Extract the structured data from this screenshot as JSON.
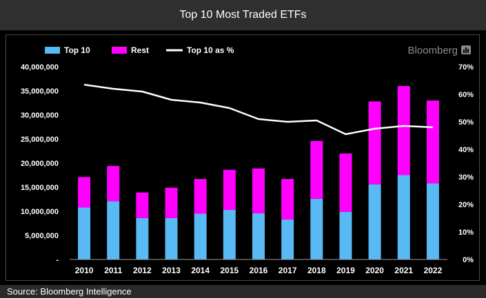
{
  "title": "Top 10 Most Traded ETFs",
  "brand": "Bloomberg",
  "source": "Source: Bloomberg Intelligence",
  "colors": {
    "top10": "#59b9f5",
    "rest": "#ff00ff",
    "pct": "#ffffff"
  },
  "chart_data": {
    "type": "bar",
    "stacked": true,
    "title": "",
    "categories": [
      "2010",
      "2011",
      "2012",
      "2013",
      "2014",
      "2015",
      "2016",
      "2017",
      "2018",
      "2019",
      "2020",
      "2021",
      "2022"
    ],
    "series": [
      {
        "name": "Top 10",
        "type": "bar",
        "axis": "left",
        "values": [
          10800000,
          12100000,
          8600000,
          8600000,
          9500000,
          10300000,
          9600000,
          8300000,
          12600000,
          9900000,
          15600000,
          17500000,
          15800000
        ]
      },
      {
        "name": "Rest",
        "type": "bar",
        "axis": "left",
        "values": [
          6300000,
          7300000,
          5300000,
          6300000,
          7200000,
          8300000,
          9300000,
          8400000,
          12000000,
          12100000,
          17200000,
          18500000,
          17200000
        ]
      },
      {
        "name": "Top 10 as %",
        "type": "line",
        "axis": "right",
        "values": [
          63.5,
          62,
          61,
          58,
          57,
          55,
          51,
          50,
          50.5,
          45.5,
          47.5,
          48.5,
          48
        ]
      }
    ],
    "y_left": {
      "ylim": [
        0,
        40000000
      ],
      "tick_values": [
        0,
        5000000,
        10000000,
        15000000,
        20000000,
        25000000,
        30000000,
        35000000,
        40000000
      ],
      "tick_labels": [
        "-",
        "5,000,000",
        "10,000,000",
        "15,000,000",
        "20,000,000",
        "25,000,000",
        "30,000,000",
        "35,000,000",
        "40,000,000"
      ]
    },
    "y_right": {
      "ylim": [
        0,
        70
      ],
      "tick_values": [
        0,
        10,
        20,
        30,
        40,
        50,
        60,
        70
      ],
      "tick_labels": [
        "0%",
        "10%",
        "20%",
        "30%",
        "40%",
        "50%",
        "60%",
        "70%"
      ]
    },
    "grid": false,
    "legend": "top-left"
  }
}
